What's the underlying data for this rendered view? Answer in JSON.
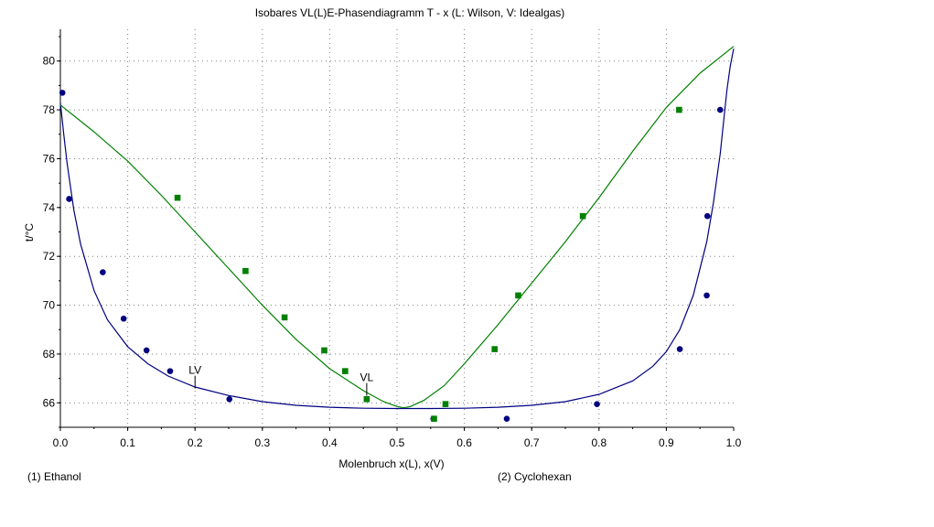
{
  "chart_data": {
    "type": "scatter",
    "title": "Isobares VL(L)E-Phasendiagramm T - x  (L: Wilson, V: Idealgas)",
    "xlabel": "Molenbruch x(L), x(V)",
    "ylabel": "t/°C",
    "xlim": [
      0.0,
      1.0
    ],
    "ylim": [
      65.0,
      81.3
    ],
    "x_ticks": [
      "0.0",
      "0.1",
      "0.2",
      "0.3",
      "0.4",
      "0.5",
      "0.6",
      "0.7",
      "0.8",
      "0.9",
      "1.0"
    ],
    "y_ticks": [
      "66",
      "68",
      "70",
      "72",
      "74",
      "76",
      "78",
      "80"
    ],
    "grid": true,
    "component_labels": [
      "(1) Ethanol",
      "(2) Cyclohexan"
    ],
    "curve_labels": [
      {
        "text": "LV",
        "x": 0.2,
        "y": 67.0
      },
      {
        "text": "VL",
        "x": 0.455,
        "y": 66.7
      }
    ],
    "series": [
      {
        "kind": "curve",
        "color": "#000080",
        "x": [
          0.0,
          0.005,
          0.01,
          0.02,
          0.03,
          0.05,
          0.07,
          0.1,
          0.13,
          0.16,
          0.2,
          0.25,
          0.3,
          0.35,
          0.4,
          0.45,
          0.5,
          0.55,
          0.6,
          0.65,
          0.7,
          0.75,
          0.8,
          0.85,
          0.88,
          0.9,
          0.92,
          0.94,
          0.96,
          0.97,
          0.98,
          0.99,
          0.995,
          1.0
        ],
        "y": [
          78.3,
          77.0,
          75.8,
          73.9,
          72.5,
          70.6,
          69.4,
          68.3,
          67.6,
          67.1,
          66.65,
          66.3,
          66.05,
          65.9,
          65.82,
          65.78,
          65.77,
          65.77,
          65.78,
          65.82,
          65.9,
          66.05,
          66.35,
          66.9,
          67.5,
          68.1,
          69.0,
          70.4,
          72.6,
          74.2,
          76.2,
          78.8,
          79.8,
          80.5
        ]
      },
      {
        "kind": "curve",
        "color": "#008000",
        "x": [
          0.0,
          0.05,
          0.1,
          0.15,
          0.2,
          0.25,
          0.3,
          0.35,
          0.4,
          0.45,
          0.48,
          0.5,
          0.51,
          0.52,
          0.54,
          0.57,
          0.6,
          0.65,
          0.7,
          0.75,
          0.8,
          0.85,
          0.9,
          0.95,
          1.0
        ],
        "y": [
          78.2,
          77.1,
          75.9,
          74.5,
          73.0,
          71.5,
          70.0,
          68.6,
          67.4,
          66.5,
          66.05,
          65.85,
          65.8,
          65.85,
          66.1,
          66.7,
          67.6,
          69.2,
          70.9,
          72.6,
          74.4,
          76.3,
          78.1,
          79.5,
          80.6
        ]
      },
      {
        "kind": "points",
        "color": "#000080",
        "marker": "circle",
        "x": [
          0.003,
          0.013,
          0.063,
          0.094,
          0.128,
          0.163,
          0.251,
          0.554,
          0.663,
          0.797,
          0.92,
          0.96,
          0.961,
          0.98
        ],
        "y": [
          78.7,
          74.35,
          71.35,
          69.45,
          68.15,
          67.3,
          66.15,
          65.35,
          65.35,
          65.95,
          68.2,
          70.4,
          73.65,
          78.0
        ]
      },
      {
        "kind": "points",
        "color": "#008000",
        "marker": "square",
        "x": [
          0.174,
          0.275,
          0.333,
          0.392,
          0.423,
          0.455,
          0.555,
          0.572,
          0.645,
          0.68,
          0.776,
          0.919
        ],
        "y": [
          74.4,
          71.4,
          69.5,
          68.15,
          67.3,
          66.15,
          65.35,
          65.95,
          68.2,
          70.4,
          73.65,
          78.0
        ]
      }
    ]
  }
}
